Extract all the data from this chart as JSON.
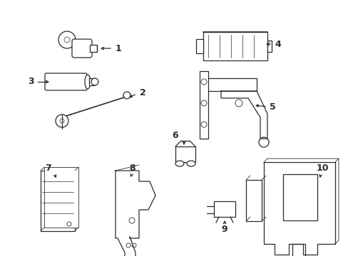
{
  "bg_color": "#ffffff",
  "line_color": "#2b2b2b",
  "fig_width": 4.89,
  "fig_height": 3.6,
  "dpi": 100
}
